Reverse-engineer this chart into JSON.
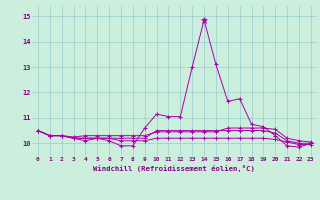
{
  "xlabel": "Windchill (Refroidissement éolien,°C)",
  "bg_color": "#cceedd",
  "line_color": "#aa00aa",
  "grid_color": "#99cccc",
  "xlim": [
    -0.5,
    23.5
  ],
  "ylim": [
    9.5,
    15.4
  ],
  "yticks": [
    10,
    11,
    12,
    13,
    14,
    15
  ],
  "xticks": [
    0,
    1,
    2,
    3,
    4,
    5,
    6,
    7,
    8,
    9,
    10,
    11,
    12,
    13,
    14,
    15,
    16,
    17,
    18,
    19,
    20,
    21,
    22,
    23
  ],
  "series": [
    [
      10.5,
      10.3,
      10.3,
      10.2,
      10.1,
      10.2,
      10.1,
      9.9,
      9.9,
      10.6,
      11.15,
      11.05,
      11.05,
      13.0,
      14.85,
      13.1,
      11.65,
      11.75,
      10.75,
      10.65,
      10.3,
      9.9,
      9.85,
      10.0
    ],
    [
      10.5,
      10.3,
      10.3,
      10.25,
      10.3,
      10.3,
      10.3,
      10.3,
      10.3,
      10.3,
      10.45,
      10.45,
      10.45,
      10.45,
      10.45,
      10.45,
      10.6,
      10.6,
      10.6,
      10.6,
      10.55,
      10.2,
      10.1,
      10.05
    ],
    [
      10.5,
      10.3,
      10.3,
      10.2,
      10.2,
      10.2,
      10.2,
      10.1,
      10.1,
      10.1,
      10.2,
      10.2,
      10.2,
      10.2,
      10.2,
      10.2,
      10.2,
      10.2,
      10.2,
      10.2,
      10.15,
      10.05,
      9.95,
      9.95
    ],
    [
      10.5,
      10.3,
      10.3,
      10.2,
      10.2,
      10.2,
      10.2,
      10.2,
      10.2,
      10.2,
      10.5,
      10.5,
      10.5,
      10.5,
      10.5,
      10.5,
      10.5,
      10.5,
      10.5,
      10.5,
      10.4,
      10.1,
      10.0,
      10.0
    ]
  ]
}
